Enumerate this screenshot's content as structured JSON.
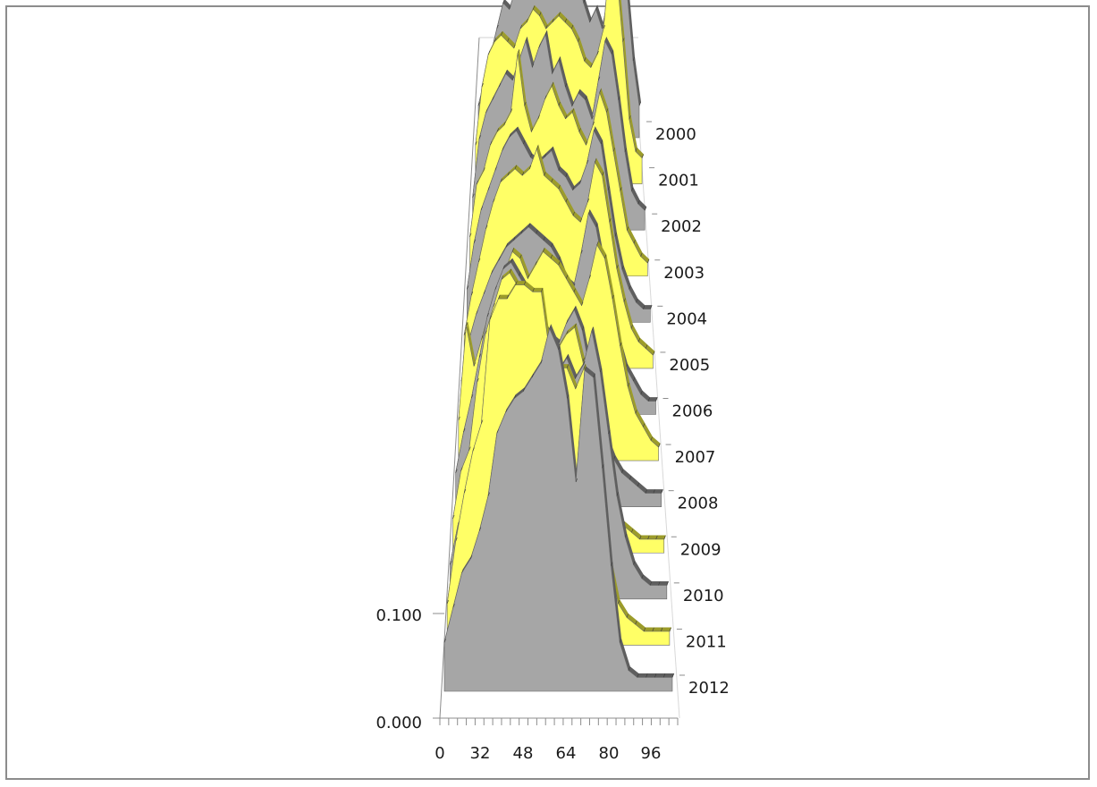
{
  "chart_data": {
    "type": "area",
    "title": "",
    "xlabel": "",
    "ylabel": "",
    "x_tick_labels": [
      "0",
      "32",
      "48",
      "64",
      "80",
      "96"
    ],
    "y_tick_labels": [
      "0.000",
      "0.100"
    ],
    "ylim": [
      0,
      0.2
    ],
    "x": [
      0,
      4,
      8,
      12,
      16,
      20,
      24,
      28,
      32,
      36,
      40,
      44,
      48,
      52,
      56,
      60,
      64,
      68,
      72,
      76,
      80,
      84,
      88,
      92,
      96,
      100,
      104
    ],
    "colors": {
      "gray": "#a6a6a6",
      "gray_edge": "#5f5f5f",
      "yellow": "#ffff66",
      "yellow_edge": "#9c9c2a",
      "axis": "#8c8c8c"
    },
    "series": [
      {
        "name": "2000",
        "values": [
          0.01,
          0.018,
          0.026,
          0.034,
          0.042,
          0.04,
          0.046,
          0.048,
          0.05,
          0.056,
          0.058,
          0.052,
          0.054,
          0.046,
          0.048,
          0.044,
          0.05,
          0.042,
          0.036,
          0.04,
          0.034,
          0.044,
          0.068,
          0.062,
          0.046,
          0.024,
          0.01
        ]
      },
      {
        "name": "2001",
        "values": [
          0.012,
          0.03,
          0.04,
          0.044,
          0.046,
          0.044,
          0.042,
          0.048,
          0.05,
          0.054,
          0.052,
          0.048,
          0.05,
          0.052,
          0.05,
          0.048,
          0.044,
          0.038,
          0.036,
          0.04,
          0.048,
          0.07,
          0.066,
          0.044,
          0.02,
          0.01,
          0.008
        ]
      },
      {
        "name": "2002",
        "values": [
          0.01,
          0.028,
          0.036,
          0.04,
          0.044,
          0.048,
          0.046,
          0.052,
          0.058,
          0.05,
          0.056,
          0.06,
          0.048,
          0.052,
          0.044,
          0.038,
          0.042,
          0.04,
          0.034,
          0.046,
          0.058,
          0.054,
          0.04,
          0.024,
          0.012,
          0.008,
          0.006
        ]
      },
      {
        "name": "2003",
        "values": [
          0.012,
          0.028,
          0.032,
          0.04,
          0.044,
          0.046,
          0.05,
          0.068,
          0.052,
          0.044,
          0.048,
          0.054,
          0.058,
          0.052,
          0.048,
          0.05,
          0.044,
          0.04,
          0.046,
          0.056,
          0.05,
          0.038,
          0.026,
          0.014,
          0.01,
          0.006,
          0.004
        ]
      },
      {
        "name": "2004",
        "values": [
          0.01,
          0.024,
          0.034,
          0.04,
          0.046,
          0.052,
          0.056,
          0.058,
          0.054,
          0.05,
          0.048,
          0.05,
          0.052,
          0.046,
          0.044,
          0.04,
          0.042,
          0.048,
          0.058,
          0.054,
          0.04,
          0.026,
          0.016,
          0.01,
          0.006,
          0.004,
          0.004
        ]
      },
      {
        "name": "2005",
        "values": [
          0.01,
          0.022,
          0.032,
          0.042,
          0.05,
          0.056,
          0.058,
          0.06,
          0.058,
          0.06,
          0.066,
          0.058,
          0.056,
          0.054,
          0.05,
          0.046,
          0.044,
          0.05,
          0.062,
          0.058,
          0.044,
          0.03,
          0.02,
          0.012,
          0.008,
          0.006,
          0.004
        ]
      },
      {
        "name": "2006",
        "values": [
          0.01,
          0.022,
          0.03,
          0.036,
          0.042,
          0.046,
          0.05,
          0.052,
          0.054,
          0.056,
          0.054,
          0.052,
          0.05,
          0.046,
          0.04,
          0.038,
          0.048,
          0.06,
          0.056,
          0.044,
          0.032,
          0.022,
          0.014,
          0.01,
          0.006,
          0.004,
          0.004
        ]
      },
      {
        "name": "2007",
        "values": [
          0.012,
          0.04,
          0.028,
          0.036,
          0.044,
          0.05,
          0.056,
          0.062,
          0.06,
          0.054,
          0.058,
          0.062,
          0.06,
          0.058,
          0.054,
          0.05,
          0.046,
          0.054,
          0.064,
          0.06,
          0.048,
          0.034,
          0.022,
          0.014,
          0.01,
          0.006,
          0.004
        ]
      },
      {
        "name": "2008",
        "values": [
          0.01,
          0.022,
          0.032,
          0.044,
          0.056,
          0.064,
          0.07,
          0.072,
          0.068,
          0.064,
          0.06,
          0.054,
          0.05,
          0.048,
          0.054,
          0.058,
          0.052,
          0.04,
          0.028,
          0.02,
          0.014,
          0.01,
          0.008,
          0.006,
          0.004,
          0.004,
          0.004
        ]
      },
      {
        "name": "2009",
        "values": [
          0.01,
          0.024,
          0.03,
          0.05,
          0.064,
          0.072,
          0.08,
          0.082,
          0.078,
          0.072,
          0.066,
          0.064,
          0.056,
          0.06,
          0.064,
          0.066,
          0.056,
          0.04,
          0.026,
          0.016,
          0.01,
          0.008,
          0.006,
          0.004,
          0.004,
          0.004,
          0.004
        ]
      },
      {
        "name": "2010",
        "values": [
          0.01,
          0.022,
          0.026,
          0.032,
          0.044,
          0.06,
          0.066,
          0.064,
          0.07,
          0.078,
          0.086,
          0.08,
          0.072,
          0.066,
          0.07,
          0.064,
          0.068,
          0.078,
          0.066,
          0.048,
          0.03,
          0.018,
          0.01,
          0.006,
          0.004,
          0.004,
          0.004
        ]
      },
      {
        "name": "2011",
        "values": [
          0.012,
          0.03,
          0.044,
          0.056,
          0.064,
          0.094,
          0.1,
          0.1,
          0.104,
          0.104,
          0.102,
          0.102,
          0.084,
          0.08,
          0.08,
          0.074,
          0.08,
          0.07,
          0.044,
          0.024,
          0.012,
          0.008,
          0.006,
          0.004,
          0.004,
          0.004,
          0.004
        ]
      },
      {
        "name": "2012",
        "values": [
          0.014,
          0.024,
          0.034,
          0.038,
          0.046,
          0.056,
          0.074,
          0.08,
          0.084,
          0.086,
          0.09,
          0.094,
          0.104,
          0.098,
          0.084,
          0.06,
          0.092,
          0.09,
          0.064,
          0.036,
          0.014,
          0.006,
          0.004,
          0.004,
          0.004,
          0.004,
          0.004
        ]
      }
    ]
  }
}
